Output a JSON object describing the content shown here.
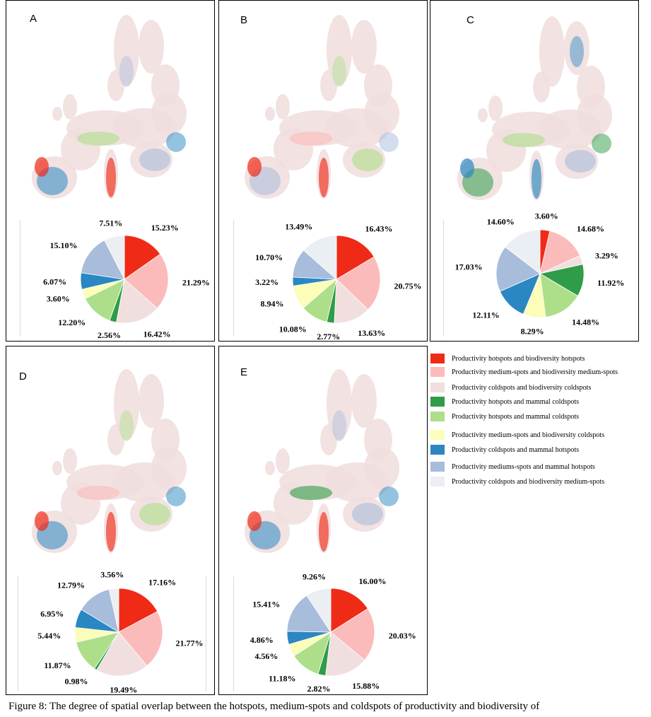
{
  "legend": [
    {
      "label": "Productivity hotspots and biodiversity hotspots",
      "color": "#ef2b17"
    },
    {
      "label": "Productivity medium-spots and biodiversity medium-spots",
      "color": "#fcbbbb"
    },
    {
      "label": "Productivity coldspots and biodiversity coldspots",
      "color": "#f1dfdf"
    },
    {
      "label": "Productivity hotspots and mammal coldspots",
      "color": "#2e9c48"
    },
    {
      "label": "Productivity hotspots and mammal coldspots",
      "color": "#addf8a"
    },
    {
      "label": "Productivity medium-spots and biodiversity coldspots",
      "color": "#fbfdb9"
    },
    {
      "label": "Productivity coldspots and mammal hotspots",
      "color": "#2a87c2"
    },
    {
      "label": "Productivity mediums-spots and mammal hotspots",
      "color": "#a8bcdb"
    },
    {
      "label": "Productivity coldspots and biodiversity medium-spots",
      "color": "#ebeff4"
    }
  ],
  "caption": "Figure 8: The degree of spatial overlap between the hotspots, medium-spots and coldspots of productivity and biodiversity of",
  "chart_data": [
    {
      "type": "pie",
      "panel": "A",
      "labels": [
        "15.23%",
        "21.29%",
        "16.42%",
        "2.56%",
        "12.20%",
        "3.60%",
        "6.07%",
        "15.10%",
        "7.51%"
      ],
      "values": [
        15.23,
        21.29,
        16.42,
        2.56,
        12.2,
        3.6,
        6.07,
        15.1,
        7.51
      ]
    },
    {
      "type": "pie",
      "panel": "B",
      "labels": [
        "16.43%",
        "20.75%",
        "13.63%",
        "2.77%",
        "10.08%",
        "8.94%",
        "3.22%",
        "10.70%",
        "13.49%"
      ],
      "values": [
        16.43,
        20.75,
        13.63,
        2.77,
        10.08,
        8.94,
        3.22,
        10.7,
        13.49
      ]
    },
    {
      "type": "pie",
      "panel": "C",
      "labels": [
        "3.60%",
        "14.68%",
        "3.29%",
        "11.92%",
        "14.48%",
        "8.29%",
        "12.11%",
        "17.03%",
        "14.60%"
      ],
      "values": [
        3.6,
        14.68,
        3.29,
        11.92,
        14.48,
        8.29,
        12.11,
        17.03,
        14.6
      ]
    },
    {
      "type": "pie",
      "panel": "D",
      "labels": [
        "17.16%",
        "21.77%",
        "19.49%",
        "0.98%",
        "11.87%",
        "5.44%",
        "6.95%",
        "12.79%",
        "3.56%"
      ],
      "values": [
        17.16,
        21.77,
        19.49,
        0.98,
        11.87,
        5.44,
        6.95,
        12.79,
        3.56
      ]
    },
    {
      "type": "pie",
      "panel": "E",
      "labels": [
        "16.00%",
        "20.03%",
        "15.88%",
        "2.82%",
        "11.18%",
        "4.56%",
        "4.86%",
        "15.41%",
        "9.26%"
      ],
      "values": [
        16.0,
        20.03,
        15.88,
        2.82,
        11.18,
        4.56,
        4.86,
        15.41,
        9.26
      ]
    }
  ]
}
